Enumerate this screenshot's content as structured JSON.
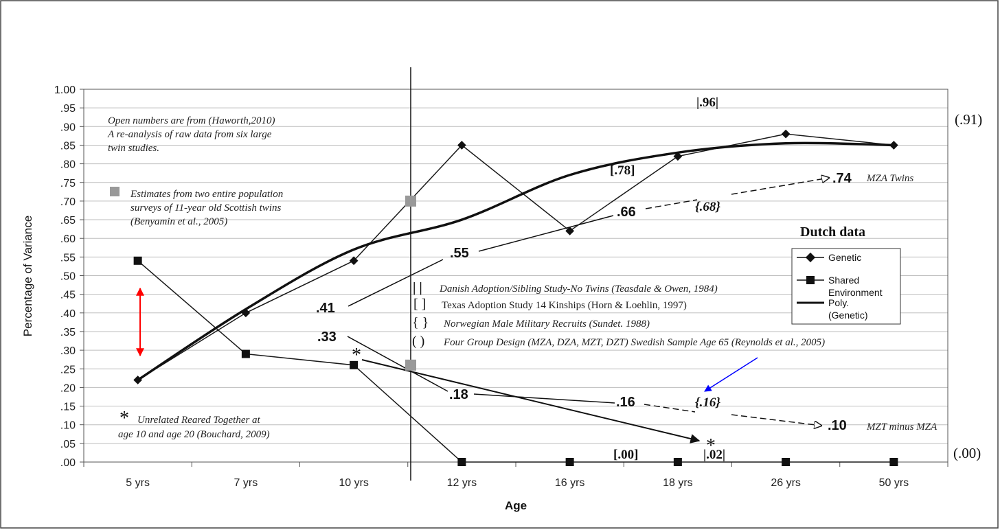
{
  "chart_data": {
    "type": "line",
    "xlabel": "Age",
    "ylabel": "Percentage of Variance",
    "categories": [
      "5 yrs",
      "7 yrs",
      "10 yrs",
      "12 yrs",
      "16 yrs",
      "18 yrs",
      "26 yrs",
      "50 yrs"
    ],
    "ylim": [
      0,
      1
    ],
    "ytick_labels": [
      "1.00",
      ".95",
      ".90",
      ".85",
      ".80",
      ".75",
      ".70",
      ".65",
      ".60",
      ".55",
      ".50",
      ".45",
      ".40",
      ".35",
      ".30",
      ".25",
      ".20",
      ".15",
      ".10",
      ".05",
      ".00"
    ],
    "grid": true,
    "series": [
      {
        "name": "Genetic",
        "marker": "diamond",
        "values": [
          0.22,
          0.4,
          0.54,
          0.85,
          0.62,
          0.82,
          0.88,
          0.85
        ]
      },
      {
        "name": "Shared Environment",
        "marker": "square",
        "values": [
          0.54,
          0.29,
          0.26,
          0.0,
          0.0,
          0.0,
          0.0,
          0.0
        ]
      },
      {
        "name": "Poly. (Genetic)",
        "marker": "none",
        "values": [
          0.22,
          0.41,
          0.57,
          0.65,
          0.77,
          0.83,
          0.855,
          0.85
        ]
      }
    ],
    "legend": {
      "title": "Dutch data",
      "placement": "right",
      "entries": [
        "Genetic",
        "Shared Environment",
        "Poly. (Genetic)"
      ]
    },
    "annotations": {
      "haworth_note": [
        "Open numbers are from (Haworth,2010)",
        "A re-analysis of raw data from six large",
        "twin studies."
      ],
      "scottish_note": [
        "Estimates from two entire population",
        "surveys of 11-year old Scottish twins",
        "(Benyamin et al., 2005)"
      ],
      "scottish_points": [
        0.7,
        0.26
      ],
      "bouchard_note": [
        "Unrelated Reared Together at",
        "age 10 and age 20 (Bouchard, 2009)"
      ],
      "bouchard_symbol": "*",
      "study_legend": [
        {
          "symbol": "|   |",
          "text": "Danish Adoption/Sibling Study-No Twins (Teasdale & Owen, 1984)"
        },
        {
          "symbol": "[   ]",
          "text": "Texas Adoption Study 14 Kinships (Horn & Loehlin, 1997)"
        },
        {
          "symbol": "{   }",
          "text": "Norwegian Male Military Recruits (Sundet. 1988)"
        },
        {
          "symbol": "(   )",
          "text": "Four Group Design (MZA, DZA,  MZT, DZT) Swedish Sample Age 65 (Reynolds et al., 2005)"
        }
      ],
      "upper_values": [
        ".41",
        ".55",
        ".66",
        ".74"
      ],
      "upper_end_label": "MZA Twins",
      "lower_values": [
        ".33",
        ".18",
        ".16",
        ".10"
      ],
      "lower_end_label": "MZT minus MZA",
      "bracketed": [
        "|.96|",
        "[.78]",
        "{.68}",
        "{.16}",
        "[.00]",
        "|.02|"
      ],
      "right_side": [
        "(.91)",
        "(.00)"
      ],
      "asterisks": [
        "*",
        "*"
      ]
    },
    "colors": {
      "range_arrow": "#ff0000",
      "pointer_arrow": "#0000ff",
      "scottish_marker": "#999999",
      "line": "#1a1a1a"
    }
  }
}
